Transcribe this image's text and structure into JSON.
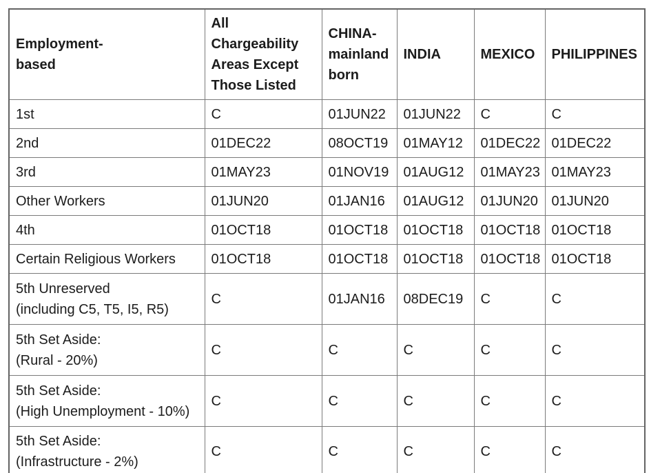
{
  "table": {
    "columns": [
      {
        "label": "Employment-\nbased"
      },
      {
        "label": "All Chargeability\nAreas Except\nThose Listed"
      },
      {
        "label": "CHINA-\nmainland\nborn"
      },
      {
        "label": "INDIA"
      },
      {
        "label": "MEXICO"
      },
      {
        "label": "PHILIPPINES"
      }
    ],
    "rows": [
      {
        "label": "1st",
        "values": [
          "C",
          "01JUN22",
          "01JUN22",
          "C",
          "C"
        ]
      },
      {
        "label": "2nd",
        "values": [
          "01DEC22",
          "08OCT19",
          "01MAY12",
          "01DEC22",
          "01DEC22"
        ]
      },
      {
        "label": "3rd",
        "values": [
          "01MAY23",
          "01NOV19",
          "01AUG12",
          "01MAY23",
          "01MAY23"
        ]
      },
      {
        "label": "Other Workers",
        "values": [
          "01JUN20",
          "01JAN16",
          "01AUG12",
          "01JUN20",
          "01JUN20"
        ]
      },
      {
        "label": "4th",
        "values": [
          "01OCT18",
          "01OCT18",
          "01OCT18",
          "01OCT18",
          "01OCT18"
        ]
      },
      {
        "label": "Certain Religious Workers",
        "values": [
          "01OCT18",
          "01OCT18",
          "01OCT18",
          "01OCT18",
          "01OCT18"
        ]
      },
      {
        "label": "5th Unreserved\n(including C5, T5, I5, R5)",
        "values": [
          "C",
          "01JAN16",
          "08DEC19",
          "C",
          "C"
        ]
      },
      {
        "label": "5th Set Aside:\n(Rural - 20%)",
        "values": [
          "C",
          "C",
          "C",
          "C",
          "C"
        ]
      },
      {
        "label": "5th Set Aside:\n(High Unemployment - 10%)",
        "values": [
          "C",
          "C",
          "C",
          "C",
          "C"
        ]
      },
      {
        "label": "5th Set Aside:\n(Infrastructure - 2%)",
        "values": [
          "C",
          "C",
          "C",
          "C",
          "C"
        ]
      }
    ],
    "colors": {
      "grid_line": "#7a7a7a",
      "outer_border": "#636363",
      "text": "#1c1c1c",
      "background": "#ffffff"
    }
  }
}
